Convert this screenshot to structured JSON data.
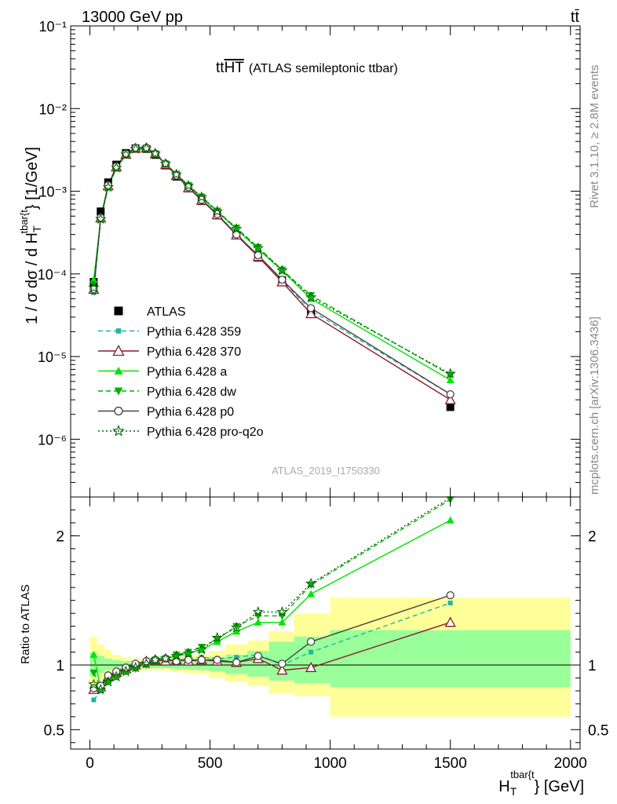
{
  "header": {
    "left": "13000 GeV pp",
    "right": "tt̄"
  },
  "side_text": {
    "rivet": "Rivet 3.1.10, ≥ 2.8M events",
    "mcplots": "mcplots.cern.ch [arXiv:1306.3436]"
  },
  "chart_data": [
    {
      "type": "line",
      "title": "ttHT (ATLAS semileptonic ttbar)",
      "title_main": "tt",
      "title_over": "HT",
      "title_rest": "(ATLAS semileptonic ttbar)",
      "watermark": "ATLAS_2019_I1750330",
      "ylabel": "1 / σ dσ / d H_T^{tbar{t}} [1/GeV]",
      "ylabel_prefix": "1 / σ dσ / d H",
      "ylabel_sub": "T",
      "ylabel_sup": "tbar{t",
      "ylabel_suffix": "} [1/GeV]",
      "yscale": "log",
      "ylim": [
        2e-07,
        0.1
      ],
      "xlim": [
        -80,
        2040
      ],
      "ytick_labels": [
        "10⁻⁶",
        "10⁻⁵",
        "10⁻⁴",
        "10⁻³",
        "10⁻²",
        "10⁻¹"
      ],
      "legend_placement": "middle-left",
      "x": [
        16,
        45,
        76,
        110,
        150,
        190,
        235,
        272,
        315,
        360,
        410,
        465,
        530,
        610,
        700,
        800,
        920,
        1500
      ],
      "series": [
        {
          "name": "ATLAS",
          "color": "#000000",
          "style": "data",
          "marker": "square",
          "values": [
            8e-05,
            0.00057,
            0.00128,
            0.0021,
            0.0029,
            0.0033,
            0.00325,
            0.00275,
            0.00205,
            0.0015,
            0.00108,
            0.00076,
            0.00051,
            0.000295,
            0.000157,
            8.4e-05,
            3.5e-05,
            2.45e-06
          ]
        },
        {
          "name": "Pythia 6.428 359",
          "color": "#1fb5a0",
          "style": "dashed",
          "marker": "smallsquare",
          "values": [
            5.9e-05,
            0.00046,
            0.00113,
            0.00195,
            0.0028,
            0.0033,
            0.00335,
            0.00285,
            0.00215,
            0.00157,
            0.00113,
            0.0008,
            0.00053,
            0.000305,
            0.000165,
            8.4e-05,
            3.6e-05,
            3.5e-06
          ]
        },
        {
          "name": "Pythia 6.428 370",
          "color": "#8b1a2b",
          "style": "solid",
          "marker": "triangle-open",
          "values": [
            6.5e-05,
            0.000475,
            0.00116,
            0.00197,
            0.0028,
            0.0033,
            0.00335,
            0.00285,
            0.0021,
            0.00155,
            0.0011,
            0.00078,
            0.00052,
            0.000295,
            0.000162,
            8e-05,
            3.3e-05,
            3e-06
          ]
        },
        {
          "name": "Pythia 6.428 a",
          "color": "#00e600",
          "style": "solid",
          "marker": "triangle",
          "values": [
            8.5e-05,
            0.000465,
            0.00112,
            0.00193,
            0.00278,
            0.0033,
            0.0033,
            0.00285,
            0.00215,
            0.0016,
            0.00117,
            0.00084,
            0.00057,
            0.00035,
            0.0002,
            0.00011,
            5e-05,
            5.2e-06
          ]
        },
        {
          "name": "Pythia 6.428 dw",
          "color": "#00b200",
          "style": "dashed",
          "marker": "triangle-down",
          "values": [
            7.5e-05,
            0.00047,
            0.00112,
            0.0019,
            0.00275,
            0.0032,
            0.00325,
            0.00285,
            0.00215,
            0.00162,
            0.00118,
            0.00086,
            0.00058,
            0.00036,
            0.00021,
            0.000112,
            5.5e-05,
            6e-06
          ]
        },
        {
          "name": "Pythia 6.428 p0",
          "color": "#444444",
          "style": "solid",
          "marker": "circle-open",
          "values": [
            6.5e-05,
            0.00048,
            0.00118,
            0.002,
            0.00285,
            0.00335,
            0.00335,
            0.00285,
            0.00215,
            0.00155,
            0.00112,
            0.00079,
            0.00053,
            0.0003,
            0.000168,
            8.5e-05,
            3.85e-05,
            3.5e-06
          ]
        },
        {
          "name": "Pythia 6.428 pro-q2o",
          "color": "#006400",
          "style": "dotted",
          "marker": "star-open",
          "values": [
            6.8e-05,
            0.00046,
            0.00112,
            0.00192,
            0.00278,
            0.00325,
            0.0033,
            0.00285,
            0.00215,
            0.0016,
            0.00117,
            0.00085,
            0.00057,
            0.00035,
            0.000205,
            0.00011,
            5.2e-05,
            6.2e-06
          ]
        }
      ]
    },
    {
      "type": "line",
      "ylabel": "Ratio to ATLAS",
      "ylim": [
        0.35,
        2.3
      ],
      "xlim": [
        -80,
        2040
      ],
      "xlabel": "H_T^{tbar{t}} [GeV]",
      "xlabel_main": "H",
      "xlabel_sub": "T",
      "xlabel_sup": "tbar{t",
      "xlabel_suffix": "} [GeV]",
      "xticks": [
        0,
        500,
        1000,
        1500,
        2000
      ],
      "xtick_labels": [
        "0",
        "500",
        "1000",
        "1500",
        "2000"
      ],
      "yticks": [
        0.5,
        1,
        2
      ],
      "ytick_labels": [
        "0.5",
        "1",
        "2"
      ],
      "band_edges": [
        0,
        30,
        60,
        90,
        130,
        170,
        210,
        250,
        295,
        335,
        385,
        435,
        495,
        565,
        655,
        745,
        850,
        1000,
        2000
      ],
      "band_yellow": [
        [
          0.84,
          1.22
        ],
        [
          0.89,
          1.16
        ],
        [
          0.92,
          1.12
        ],
        [
          0.94,
          1.08
        ],
        [
          0.95,
          1.06
        ],
        [
          0.96,
          1.05
        ],
        [
          0.96,
          1.05
        ],
        [
          0.96,
          1.05
        ],
        [
          0.96,
          1.05
        ],
        [
          0.95,
          1.06
        ],
        [
          0.94,
          1.07
        ],
        [
          0.93,
          1.08
        ],
        [
          0.9,
          1.11
        ],
        [
          0.87,
          1.16
        ],
        [
          0.84,
          1.19
        ],
        [
          0.78,
          1.26
        ],
        [
          0.76,
          1.4
        ],
        [
          0.6,
          1.52
        ]
      ],
      "band_green": [
        [
          0.91,
          1.1
        ],
        [
          0.94,
          1.07
        ],
        [
          0.96,
          1.05
        ],
        [
          0.97,
          1.04
        ],
        [
          0.975,
          1.03
        ],
        [
          0.975,
          1.03
        ],
        [
          0.975,
          1.03
        ],
        [
          0.975,
          1.03
        ],
        [
          0.975,
          1.03
        ],
        [
          0.97,
          1.035
        ],
        [
          0.965,
          1.04
        ],
        [
          0.96,
          1.045
        ],
        [
          0.95,
          1.06
        ],
        [
          0.93,
          1.08
        ],
        [
          0.91,
          1.11
        ],
        [
          0.88,
          1.18
        ],
        [
          0.86,
          1.22
        ],
        [
          0.83,
          1.27
        ]
      ],
      "x": [
        16,
        45,
        76,
        110,
        150,
        190,
        235,
        272,
        315,
        360,
        410,
        465,
        530,
        610,
        700,
        800,
        920,
        1500
      ],
      "series": [
        {
          "name": "Pythia 6.428 359",
          "color": "#1fb5a0",
          "style": "dashed",
          "marker": "smallsquare",
          "values": [
            0.73,
            0.8,
            0.88,
            0.93,
            0.96,
            1.0,
            1.03,
            1.04,
            1.05,
            1.04,
            1.05,
            1.06,
            1.05,
            1.06,
            1.08,
            1.0,
            1.1,
            1.48
          ]
        },
        {
          "name": "Pythia 6.428 370",
          "color": "#8b1a2b",
          "style": "solid",
          "marker": "triangle-open",
          "values": [
            0.81,
            0.83,
            0.91,
            0.94,
            0.97,
            1.0,
            1.03,
            1.04,
            1.03,
            1.04,
            1.03,
            1.04,
            1.03,
            1.02,
            1.05,
            0.96,
            0.98,
            1.33
          ]
        },
        {
          "name": "Pythia 6.428 a",
          "color": "#00e600",
          "style": "solid",
          "marker": "triangle",
          "values": [
            1.08,
            0.82,
            0.88,
            0.92,
            0.96,
            1.0,
            1.02,
            1.04,
            1.05,
            1.07,
            1.09,
            1.12,
            1.18,
            1.26,
            1.33,
            1.33,
            1.55,
            2.12
          ]
        },
        {
          "name": "Pythia 6.428 dw",
          "color": "#00b200",
          "style": "dashed",
          "marker": "triangle-down",
          "values": [
            0.94,
            0.83,
            0.87,
            0.91,
            0.95,
            0.97,
            1.0,
            1.04,
            1.05,
            1.08,
            1.1,
            1.14,
            1.2,
            1.3,
            1.38,
            1.38,
            1.62,
            2.28
          ]
        },
        {
          "name": "Pythia 6.428 p0",
          "color": "#444444",
          "style": "solid",
          "marker": "circle-open",
          "values": [
            0.82,
            0.84,
            0.92,
            0.95,
            0.98,
            1.01,
            1.03,
            1.04,
            1.05,
            1.03,
            1.04,
            1.04,
            1.04,
            1.02,
            1.07,
            1.01,
            1.18,
            1.54
          ]
        },
        {
          "name": "Pythia 6.428 pro-q2o",
          "color": "#006400",
          "style": "dotted",
          "marker": "star-open",
          "values": [
            0.85,
            0.81,
            0.87,
            0.91,
            0.95,
            0.98,
            1.01,
            1.04,
            1.05,
            1.07,
            1.09,
            1.12,
            1.21,
            1.29,
            1.41,
            1.41,
            1.63,
            2.32
          ]
        }
      ]
    }
  ]
}
